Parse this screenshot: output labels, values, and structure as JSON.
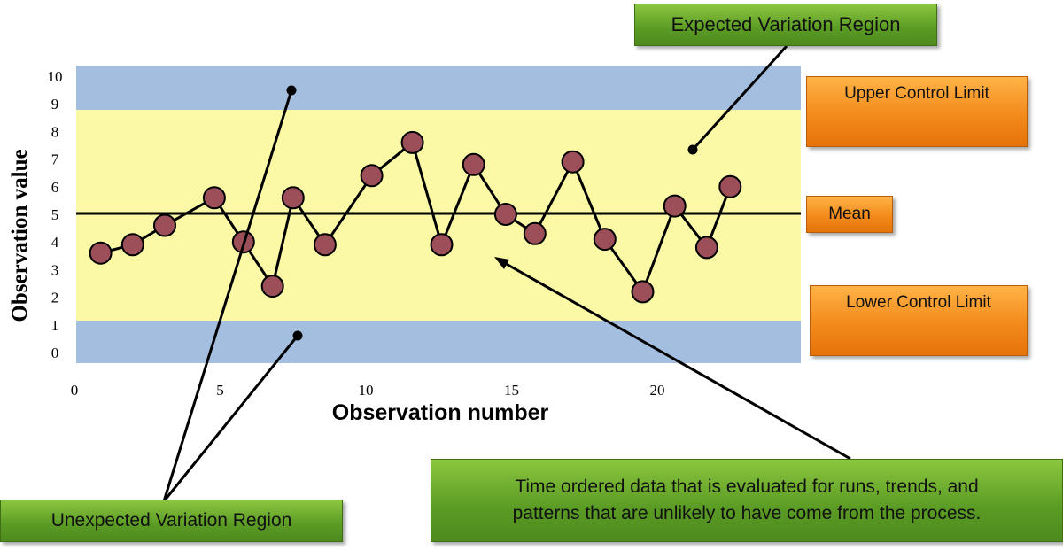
{
  "chart_data": {
    "type": "line",
    "xlabel": "Observation number",
    "ylabel": "Observation value",
    "xlim": [
      0,
      22.5
    ],
    "ylim": [
      0,
      10.5
    ],
    "x_ticks": [
      "0",
      "5",
      "10",
      "15",
      "20"
    ],
    "y_ticks": [
      "0",
      "1",
      "2",
      "3",
      "4",
      "5",
      "6",
      "7",
      "8",
      "9",
      "10"
    ],
    "series": [
      {
        "x": [
          0.9,
          2,
          3.1,
          4.8,
          5.8,
          6.8,
          7.5,
          8.6,
          10.2,
          11.6,
          12.6,
          13.7,
          14.8,
          15.8,
          17.1,
          18.2,
          19.5,
          20.6,
          21.7,
          22.5
        ],
        "y": [
          3.6,
          3.9,
          4.6,
          5.6,
          4.0,
          2.4,
          5.6,
          3.9,
          6.4,
          7.6,
          3.9,
          6.8,
          5.0,
          4.3,
          6.9,
          4.1,
          2.2,
          5.3,
          3.8,
          6.0
        ]
      }
    ],
    "mean": 5.0,
    "upper_control_limit": 8.9,
    "lower_control_limit": 1.2,
    "colors": {
      "outer_region": "#a4bee0",
      "inner_region": "#fbf9a6",
      "marker_fill": "#9c4f59",
      "line": "#000000"
    }
  },
  "labels": {
    "expected_region": "Expected Variation Region",
    "upper_control_limit": "Upper Control Limit",
    "mean": "Mean",
    "lower_control_limit": "Lower Control Limit",
    "unexpected_region": "Unexpected Variation Region",
    "time_ordered_line1": "Time ordered data that is evaluated for runs, trends, and",
    "time_ordered_line2": "patterns that are unlikely to have come from the process."
  }
}
